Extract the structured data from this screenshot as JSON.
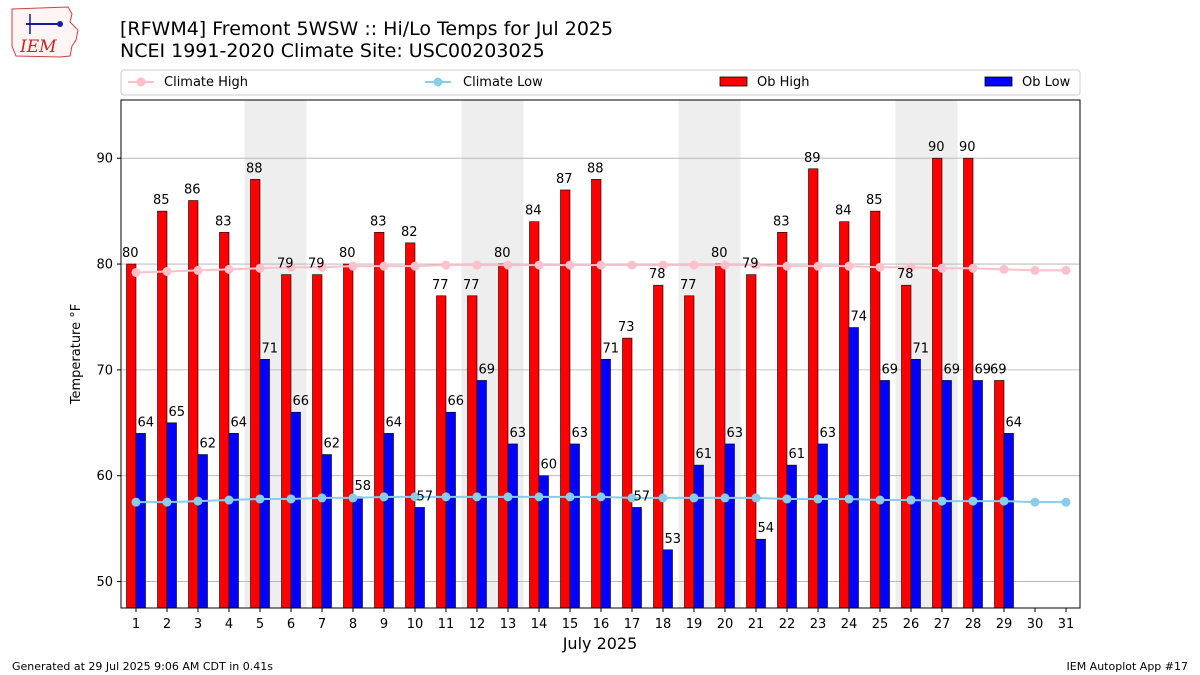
{
  "logo": {
    "text": "IEM"
  },
  "header": {
    "title_line1": "[RFWM4] Fremont 5WSW :: Hi/Lo Temps for Jul 2025",
    "title_line2": "NCEI 1991-2020 Climate Site: USC00203025"
  },
  "footer": {
    "generated": "Generated at 29 Jul 2025 9:06 AM CDT in 0.41s",
    "app": "IEM Autoplot App #17"
  },
  "colors": {
    "ob_high": "#ff0000",
    "ob_low": "#0000ff",
    "climate_high": "#ffc0cb",
    "climate_low": "#87ceeb",
    "weekend_shade": "#eeeeee",
    "grid": "#b0b0b0"
  },
  "chart_data": {
    "type": "bar",
    "xlabel": "July 2025",
    "ylabel": "Temperature °F",
    "ylim": [
      47.5,
      95.5
    ],
    "yticks": [
      50,
      60,
      70,
      80,
      90
    ],
    "grid": "horizontal",
    "legend_position": "top",
    "legend": [
      "Climate High",
      "Climate Low",
      "Ob High",
      "Ob Low"
    ],
    "categories": [
      1,
      2,
      3,
      4,
      5,
      6,
      7,
      8,
      9,
      10,
      11,
      12,
      13,
      14,
      15,
      16,
      17,
      18,
      19,
      20,
      21,
      22,
      23,
      24,
      25,
      26,
      27,
      28,
      29,
      30,
      31
    ],
    "weekend_spans": [
      [
        5,
        6
      ],
      [
        12,
        13
      ],
      [
        19,
        20
      ],
      [
        26,
        27
      ]
    ],
    "series": [
      {
        "name": "Ob High",
        "kind": "bar",
        "values": [
          80,
          85,
          86,
          83,
          88,
          79,
          79,
          80,
          83,
          82,
          77,
          77,
          80,
          84,
          87,
          88,
          73,
          78,
          77,
          80,
          79,
          83,
          89,
          84,
          85,
          78,
          90,
          90,
          69,
          null,
          null
        ],
        "labels": [
          "80",
          "85",
          "86",
          "83",
          "88",
          "79",
          "79",
          "80",
          "83",
          "82",
          "77",
          "77",
          "80",
          "84",
          "87",
          "88",
          "73",
          "78",
          "77",
          "80",
          "79",
          "83",
          "89",
          "84",
          "85",
          "78",
          "90",
          "90",
          "69",
          "",
          ""
        ]
      },
      {
        "name": "Ob Low",
        "kind": "bar",
        "values": [
          64,
          65,
          62,
          64,
          71,
          66,
          62,
          58,
          64,
          57,
          66,
          69,
          63,
          60,
          63,
          71,
          57,
          53,
          61,
          63,
          54,
          61,
          63,
          74,
          69,
          71,
          69,
          69,
          64,
          null,
          null
        ],
        "labels": [
          "64",
          "65",
          "62",
          "64",
          "71",
          "66",
          "62",
          "58",
          "64",
          "57",
          "66",
          "69",
          "63",
          "60",
          "63",
          "71",
          "57",
          "53",
          "61",
          "63",
          "54",
          "61",
          "63",
          "74",
          "69",
          "71",
          "69",
          "69",
          "64",
          "",
          ""
        ]
      },
      {
        "name": "Climate High",
        "kind": "line",
        "values": [
          79.2,
          79.3,
          79.4,
          79.5,
          79.6,
          79.7,
          79.7,
          79.8,
          79.8,
          79.8,
          79.9,
          79.9,
          79.9,
          79.9,
          79.9,
          79.9,
          79.9,
          79.9,
          79.9,
          79.9,
          79.9,
          79.8,
          79.8,
          79.8,
          79.7,
          79.7,
          79.6,
          79.6,
          79.5,
          79.4,
          79.4
        ]
      },
      {
        "name": "Climate Low",
        "kind": "line",
        "values": [
          57.5,
          57.5,
          57.6,
          57.7,
          57.8,
          57.8,
          57.9,
          57.9,
          58.0,
          58.0,
          58.0,
          58.0,
          58.0,
          58.0,
          58.0,
          58.0,
          57.9,
          57.9,
          57.9,
          57.9,
          57.9,
          57.8,
          57.8,
          57.8,
          57.7,
          57.7,
          57.6,
          57.6,
          57.6,
          57.5,
          57.5
        ]
      }
    ]
  }
}
